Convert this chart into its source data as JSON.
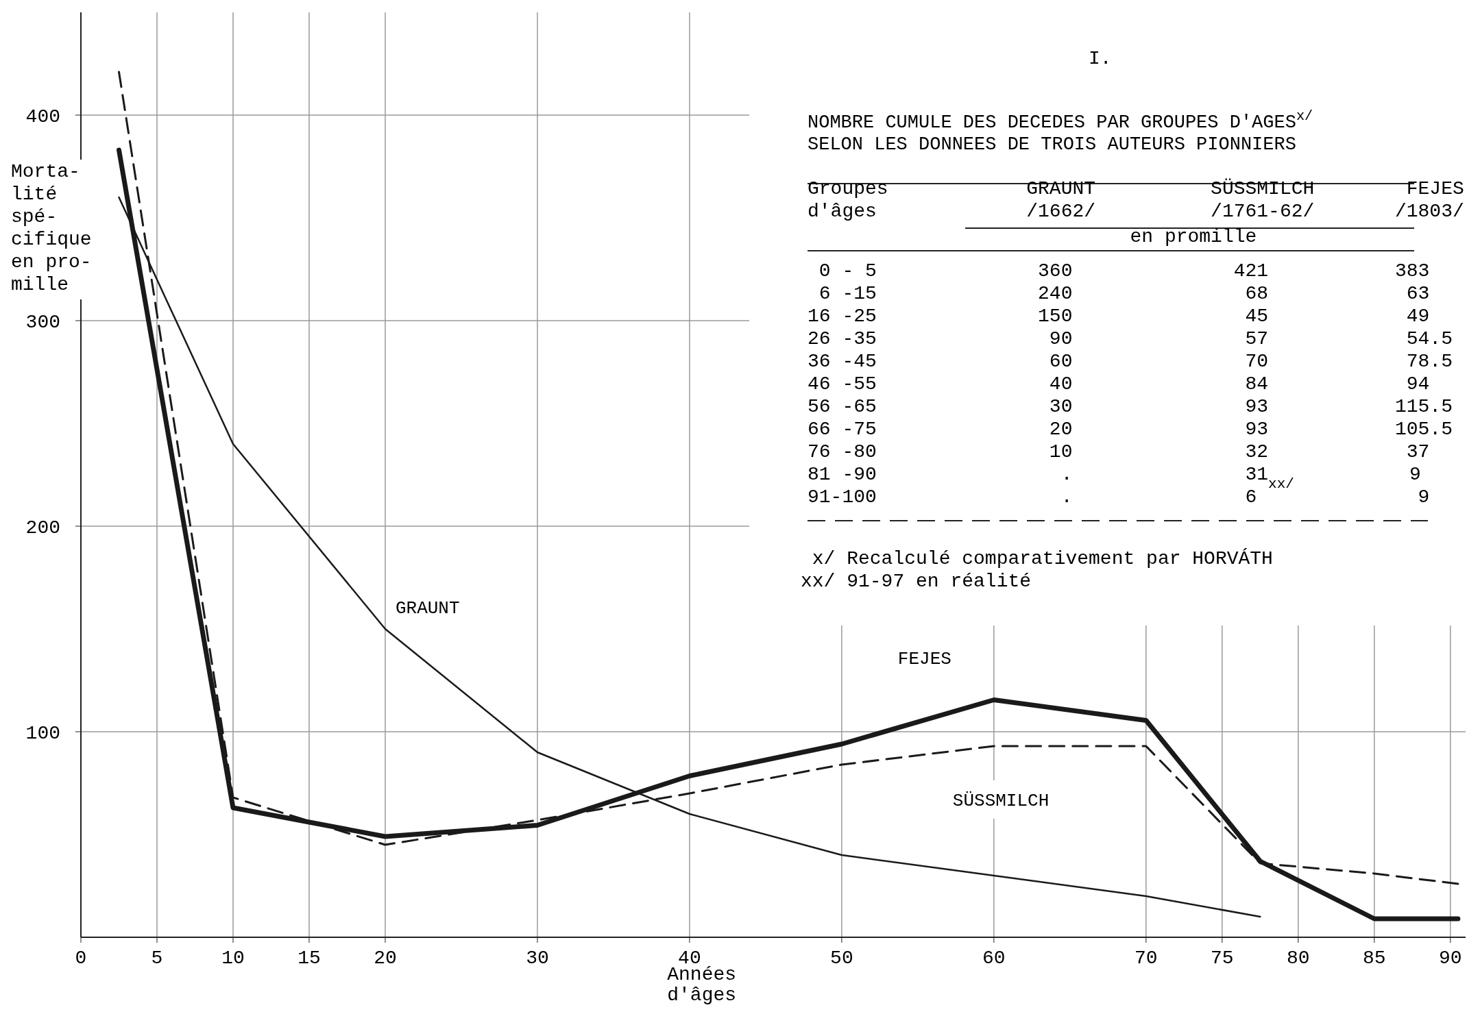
{
  "chart_data": {
    "type": "line",
    "title": "I.",
    "subtitle": "NOMBRE CUMULE DES DECEDES PAR GROUPES D'AGES$^{x/}$\nSELON LES DONNEES DE TROIS AUTEURS PIONNIERS",
    "xlabel": "Années\nd'âges",
    "ylabel": "Morta-\nlité\nspé-\ncifique\nen pro-\nmille",
    "xlim": [
      0,
      91
    ],
    "ylim": [
      0,
      450
    ],
    "xticks": [
      0,
      5,
      10,
      15,
      20,
      30,
      40,
      50,
      60,
      70,
      75,
      80,
      85,
      90
    ],
    "yticks": [
      100,
      200,
      300,
      400
    ],
    "grid": true,
    "marker": "none",
    "series": [
      {
        "name": "GRAUNT",
        "color": "#1a1a1a",
        "line_style": "solid",
        "x": [
          2.5,
          10,
          20,
          30,
          40,
          50,
          60,
          70,
          77.5
        ],
        "values": [
          360,
          240,
          150,
          90,
          60,
          40,
          30,
          20,
          10
        ]
      },
      {
        "name": "SÜSSMILCH",
        "color": "#1a1a1a",
        "line_style": "dashed",
        "x": [
          2.5,
          10,
          20,
          30,
          40,
          50,
          60,
          70,
          77.5,
          85,
          90.5
        ],
        "values": [
          421,
          68,
          45,
          57,
          70,
          84,
          93,
          93,
          36,
          31,
          26
        ]
      },
      {
        "name": "FEJES",
        "color": "#1a1a1a",
        "line_style": "solid",
        "x": [
          2.5,
          10,
          20,
          30,
          40,
          50,
          60,
          70,
          77.5,
          85,
          90.5
        ],
        "values": [
          383,
          63,
          49,
          54.5,
          78.5,
          94,
          115.5,
          105.5,
          37,
          9,
          9
        ]
      }
    ],
    "annotations": [
      "Groupes            GRAUNT          SÜSSMILCH        FEJES",
      "d'âges             /1662/          /1761-62/       /1803/",
      "                            en promille",
      " 0 - 5              360              421           383",
      " 6 -15              240               68            63",
      "16 -25              150               45            49",
      "26 -35               90               57            54.5",
      "36 -45               60               70            78.5",
      "46 -55               40               84            94",
      "56 -65               30               93           115.5",
      "66 -75               20               93           105.5",
      "76 -80               10               32            37",
      "81 -90                .               31$_{xx/}$          9",
      "91-100                .               6              9",
      " x/ Recalculé comparativement par HORVÁTH",
      "xx/ 91-97 en réalité"
    ]
  }
}
